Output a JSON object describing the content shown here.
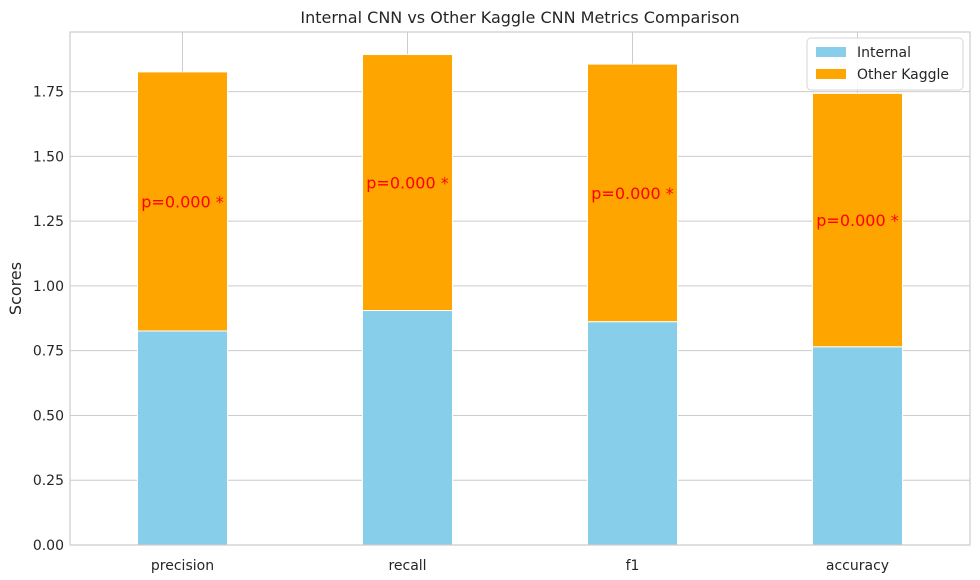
{
  "chart_data": {
    "type": "bar",
    "stacked": true,
    "title": "Internal CNN vs Other Kaggle CNN Metrics Comparison",
    "xlabel": "",
    "ylabel": "Scores",
    "categories": [
      "precision",
      "recall",
      "f1",
      "accuracy"
    ],
    "series": [
      {
        "name": "Internal",
        "color": "#87ceeb",
        "values": [
          0.826,
          0.905,
          0.862,
          0.765
        ]
      },
      {
        "name": "Other Kaggle",
        "color": "#ffa500",
        "values": [
          1.0,
          0.988,
          0.994,
          0.978
        ]
      }
    ],
    "annotations": [
      "p=0.000 *",
      "p=0.000 *",
      "p=0.000 *",
      "p=0.000 *"
    ],
    "annotation_color": "#ff0000",
    "ylim": [
      0,
      1.98
    ],
    "yticks": [
      0.0,
      0.25,
      0.5,
      0.75,
      1.0,
      1.25,
      1.5,
      1.75
    ],
    "ytick_labels": [
      "0.00",
      "0.25",
      "0.50",
      "0.75",
      "1.00",
      "1.25",
      "1.50",
      "1.75"
    ],
    "grid": true,
    "legend_position": "top-right"
  }
}
